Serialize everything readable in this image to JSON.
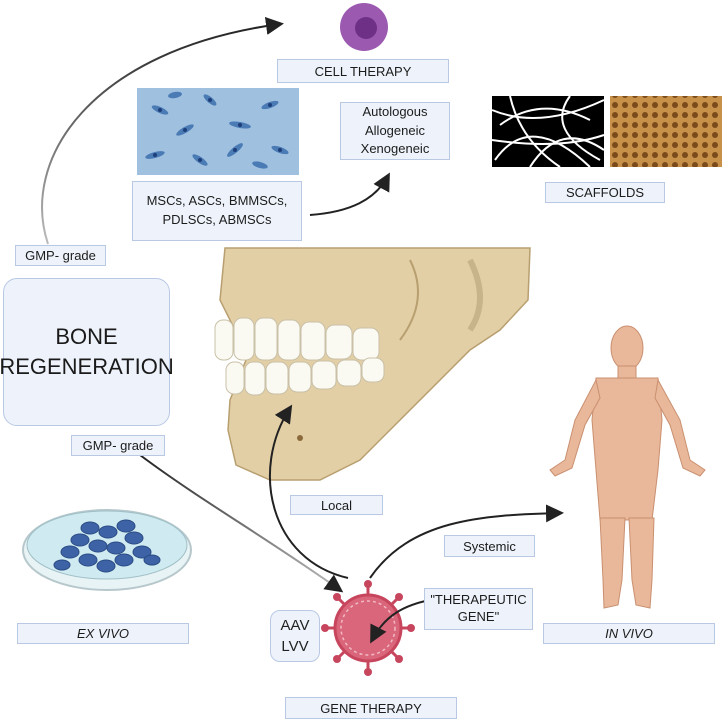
{
  "labels": {
    "cell_therapy": "CELL THERAPY",
    "donor_types": [
      "Autologous",
      "Allogeneic",
      "Xenogeneic"
    ],
    "stem_cells": [
      "MSCs, ASCs, BMMSCs,",
      "PDLSCs, ABMSCs"
    ],
    "scaffolds": "SCAFFOLDS",
    "gmp_top": "GMP- grade",
    "gmp_bottom": "GMP- grade",
    "bone_regeneration": [
      "BONE",
      "REGENERATION"
    ],
    "local": "Local",
    "systemic": "Systemic",
    "therapeutic_gene": [
      "\"THERAPEUTIC",
      "GENE\""
    ],
    "vectors": [
      "AAV",
      "LVV"
    ],
    "ex_vivo": "EX VIVO",
    "in_vivo": "IN VIVO",
    "gene_therapy": "GENE THERAPY"
  },
  "colors": {
    "label_fill": "#eef3fb",
    "label_border": "#b9c9e4",
    "cell_purple": "#9b59b0",
    "virus_red": "#d9667a",
    "skin": "#e9b89a",
    "bone": "#e2cfa6"
  }
}
